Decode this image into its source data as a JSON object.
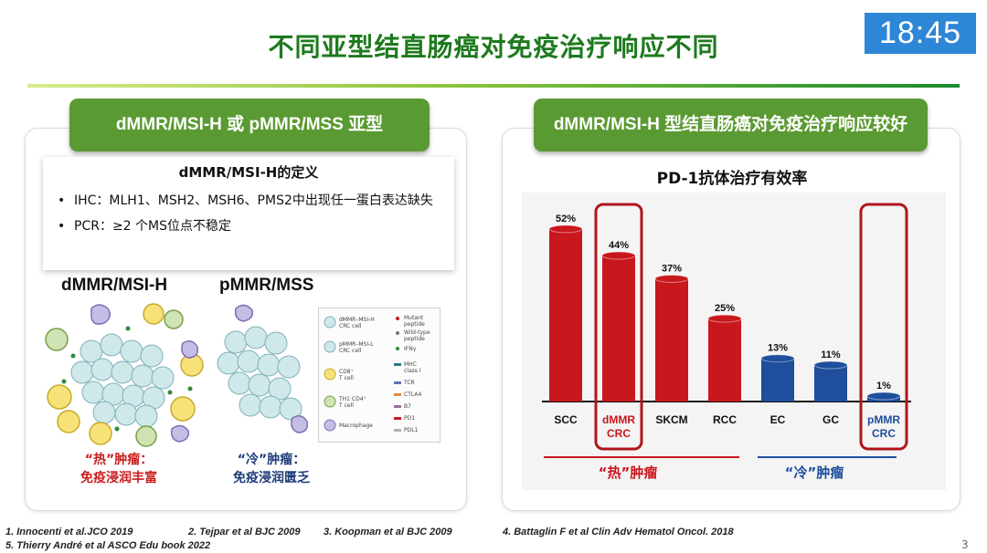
{
  "slide": {
    "title": "不同亚型结直肠癌对免疫治疗响应不同",
    "clock": "18:45",
    "page_number": "3"
  },
  "left": {
    "header": "dMMR/MSI-H 或 pMMR/MSS 亚型",
    "definition": {
      "title": "dMMR/MSI-H的定义",
      "items": [
        "IHC：MLH1、MSH2、MSH6、PMS2中出现任一蛋白表达缺失",
        "PCR：≥2 个MS位点不稳定"
      ]
    },
    "hot_label": "dMMR/MSI-H",
    "cold_label": "pMMR/MSS",
    "hot_caption": [
      "“热”肿瘤：",
      "免疫浸润丰富"
    ],
    "cold_caption": [
      "“冷”肿瘤：",
      "免疫浸润匮乏"
    ],
    "legend": {
      "left": [
        "dMMR–MSI-H",
        "CRC cell",
        "pMMR–MSI-L",
        "CRC cell",
        "CD8⁺",
        "T cell",
        "TH1 CD4⁺",
        "T cell",
        "Macrophage"
      ],
      "right": [
        "Mutant",
        "peptide",
        "Wild-type",
        "peptide",
        "IFNγ",
        "MHC",
        "class I",
        "TCR",
        "CTLA4",
        "B7",
        "PD1",
        "PDL1"
      ]
    }
  },
  "right": {
    "header": "dMMR/MSI-H 型结直肠癌对免疫治疗响应较好",
    "chart_title": "PD-1抗体治疗有效率",
    "group_hot": "“热”肿瘤",
    "group_cold": "“冷”肿瘤"
  },
  "chart_data": {
    "type": "bar",
    "title": "PD-1抗体治疗有效率",
    "categories": [
      "SCC",
      "dMMR\nCRC",
      "SKCM",
      "RCC",
      "EC",
      "GC",
      "pMMR\nCRC"
    ],
    "values": [
      52,
      44,
      37,
      25,
      13,
      11,
      1
    ],
    "value_labels": [
      "52%",
      "44%",
      "37%",
      "25%",
      "13%",
      "11%",
      "1%"
    ],
    "bar_colors": [
      "#c8171d",
      "#c8171d",
      "#c8171d",
      "#c8171d",
      "#1e4e9c",
      "#1e4e9c",
      "#1e4e9c"
    ],
    "label_colors": [
      "#111111",
      "#c8171d",
      "#111111",
      "#111111",
      "#111111",
      "#111111",
      "#1e4e9c"
    ],
    "highlighted": [
      "dMMR\nCRC",
      "pMMR\nCRC"
    ],
    "ylim": [
      0,
      55
    ],
    "hot_color": "#c8171d",
    "cold_color": "#1e4e9c"
  },
  "references": {
    "line1": [
      "1.  Innocenti et al.JCO 2019",
      "2. Tejpar et al BJC 2009",
      "3. Koopman et al BJC 2009",
      "4. Battaglin F et al Clin Adv Hematol Oncol. 2018"
    ],
    "line2": "5. Thierry André et al ASCO Edu book 2022"
  }
}
